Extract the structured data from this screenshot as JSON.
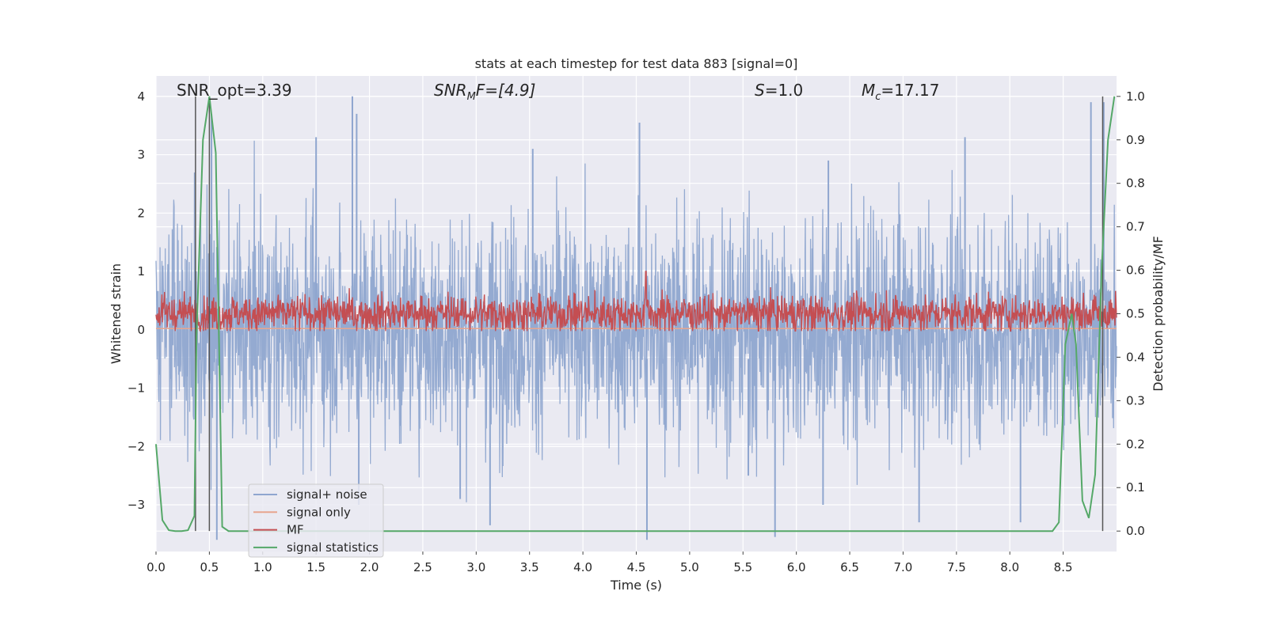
{
  "chart_data": {
    "type": "line",
    "title": "stats at each timestep for test data 883 [signal=0]",
    "xlabel": "Time (s)",
    "ylabel": "Whitened strain",
    "y2label": "Detection probability/MF",
    "xlim": [
      0.0,
      9.0
    ],
    "ylim": [
      -3.8,
      4.35
    ],
    "y2lim": [
      -0.047,
      1.047
    ],
    "grid": true,
    "legend_position": "lower-left",
    "xticks": [
      0.0,
      0.5,
      1.0,
      1.5,
      2.0,
      2.5,
      3.0,
      3.5,
      4.0,
      4.5,
      5.0,
      5.5,
      6.0,
      6.5,
      7.0,
      7.5,
      8.0,
      8.5
    ],
    "xtick_labels": [
      "0.0",
      "0.5",
      "1.0",
      "1.5",
      "2.0",
      "2.5",
      "3.0",
      "3.5",
      "4.0",
      "4.5",
      "5.0",
      "5.5",
      "6.0",
      "6.5",
      "7.0",
      "7.5",
      "8.0",
      "8.5"
    ],
    "yticks": [
      4,
      3,
      2,
      1,
      0,
      -1,
      -2,
      -3
    ],
    "ytick_labels": [
      "4",
      "3",
      "2",
      "1",
      "0",
      "−1",
      "−2",
      "−3"
    ],
    "y2ticks": [
      1.0,
      0.9,
      0.8,
      0.7,
      0.6,
      0.5,
      0.4,
      0.3,
      0.2,
      0.1,
      0.0
    ],
    "y2tick_labels": [
      "1.0",
      "0.9",
      "0.8",
      "0.7",
      "0.6",
      "0.5",
      "0.4",
      "0.3",
      "0.2",
      "0.1",
      "0.0"
    ],
    "annotations": {
      "snr_opt": "SNR_opt=3.39",
      "snr_mf_main": "SNR",
      "snr_mf_sub": "M",
      "snr_mf_rest": "F=[4.9]",
      "s_main": "S",
      "s_rest": "=1.0",
      "mc_main": "M",
      "mc_sub": "c",
      "mc_rest": "=17.17"
    },
    "vertical_lines_x": [
      0.37,
      0.5,
      8.87
    ],
    "legend": [
      "signal+ noise",
      "signal only",
      "MF",
      "signal statistics"
    ],
    "series": [
      {
        "name": "signal+ noise",
        "color": "#8fa6cf",
        "description_values": "dense whitened noise, roughly within -3.6 to 4.0",
        "peaks_x": [
          1.84,
          1.88,
          4.53,
          7.58,
          8.76,
          8.88,
          0.52,
          1.5,
          3.53,
          6.3
        ],
        "peaks_y": [
          4.0,
          3.7,
          3.55,
          3.3,
          3.9,
          3.9,
          3.7,
          3.3,
          3.1,
          2.9
        ],
        "troughs_x": [
          0.57,
          3.13,
          4.6,
          5.8,
          7.15,
          8.1,
          1.9,
          2.85,
          5.55,
          6.25
        ],
        "troughs_y": [
          -3.6,
          -3.35,
          -3.6,
          -3.55,
          -3.3,
          -3.3,
          -3.0,
          -2.9,
          -2.5,
          -3.0
        ]
      },
      {
        "name": "signal only",
        "color": "#e8a58e",
        "x": [
          0.0,
          9.0
        ],
        "y": [
          0.02,
          0.02
        ]
      },
      {
        "name": "MF",
        "color": "#c44e52",
        "description_values": "matched filter output, mostly between 0.0 and 0.8 on strain axis",
        "peak_x": 4.59,
        "peak_y": 1.0
      },
      {
        "name": "signal statistics",
        "color": "#55a868",
        "axis": "right",
        "x": [
          0.0,
          0.06,
          0.12,
          0.18,
          0.24,
          0.3,
          0.36,
          0.38,
          0.44,
          0.5,
          0.56,
          0.62,
          0.68,
          0.74,
          1.0,
          2.0,
          3.0,
          4.0,
          5.0,
          6.0,
          7.0,
          8.0,
          8.4,
          8.46,
          8.52,
          8.58,
          8.62,
          8.68,
          8.74,
          8.8,
          8.86,
          8.92,
          8.98
        ],
        "y": [
          0.2,
          0.025,
          0.002,
          0.0,
          0.0,
          0.002,
          0.035,
          0.45,
          0.9,
          1.0,
          0.87,
          0.01,
          0.0,
          0.0,
          0.0,
          0.0,
          0.0,
          0.0,
          0.0,
          0.0,
          0.0,
          0.0,
          0.0,
          0.02,
          0.43,
          0.5,
          0.43,
          0.07,
          0.03,
          0.13,
          0.6,
          0.9,
          1.0
        ]
      }
    ]
  }
}
